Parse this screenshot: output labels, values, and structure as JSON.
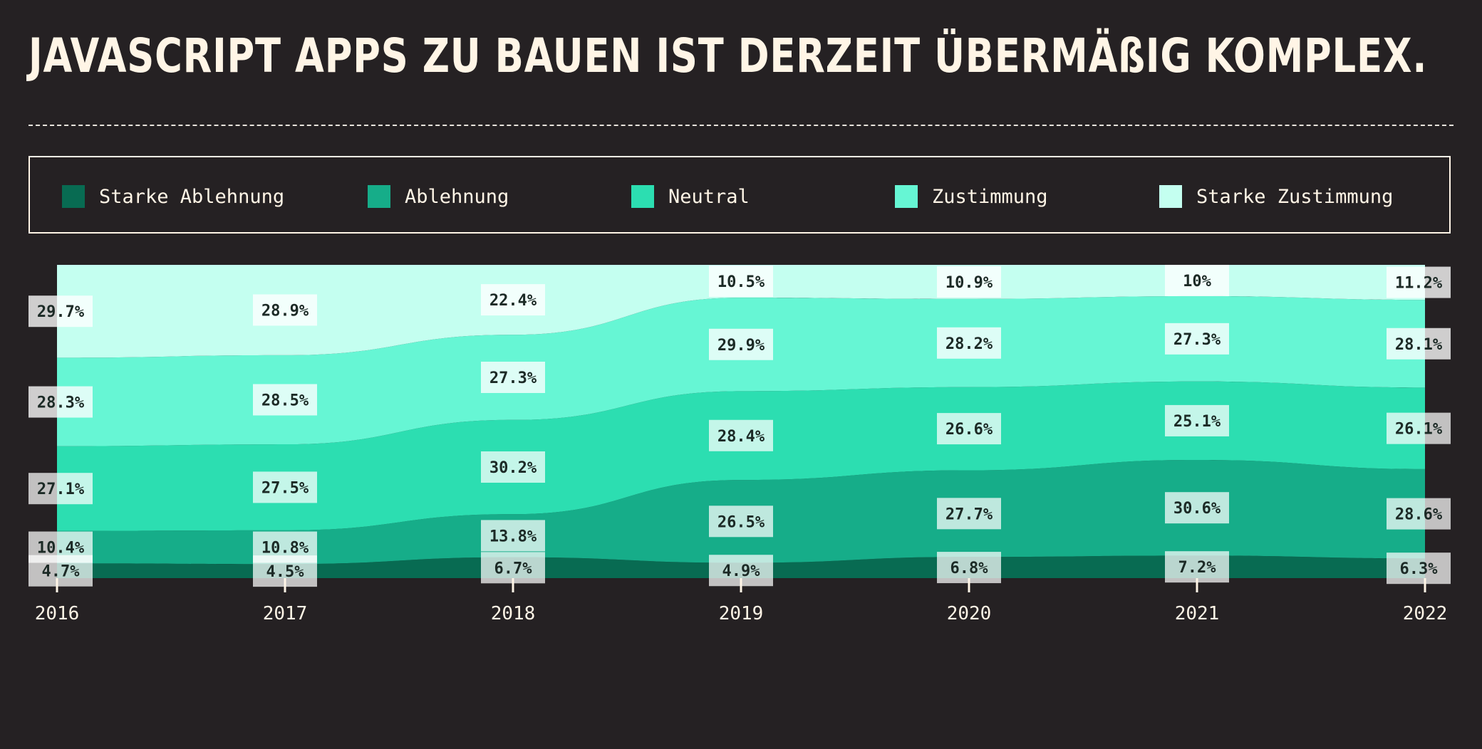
{
  "title": "JAVASCRIPT APPS ZU BAUEN IST DERZEIT ÜBERMÄßIG KOMPLEX.",
  "legend": [
    {
      "label": "Starke Ablehnung",
      "color": "#086b52"
    },
    {
      "label": "Ablehnung",
      "color": "#16ad89"
    },
    {
      "label": "Neutral",
      "color": "#2cdeb1"
    },
    {
      "label": "Zustimmung",
      "color": "#66f6d4"
    },
    {
      "label": "Starke Zustimmung",
      "color": "#c4fff0"
    }
  ],
  "chart_data": {
    "type": "area",
    "stacked": true,
    "normalized": true,
    "title": "JAVASCRIPT APPS ZU BAUEN IST DERZEIT ÜBERMÄßIG KOMPLEX.",
    "x": [
      "2016",
      "2017",
      "2018",
      "2019",
      "2020",
      "2021",
      "2022"
    ],
    "series": [
      {
        "name": "Starke Ablehnung",
        "color": "#086b52",
        "values": [
          4.7,
          4.5,
          6.7,
          4.9,
          6.8,
          7.2,
          6.3
        ]
      },
      {
        "name": "Ablehnung",
        "color": "#16ad89",
        "values": [
          10.4,
          10.8,
          13.8,
          26.5,
          27.7,
          30.6,
          28.6
        ]
      },
      {
        "name": "Neutral",
        "color": "#2cdeb1",
        "values": [
          27.1,
          27.5,
          30.2,
          28.4,
          26.6,
          25.1,
          26.1
        ]
      },
      {
        "name": "Zustimmung",
        "color": "#66f6d4",
        "values": [
          28.3,
          28.5,
          27.3,
          29.9,
          28.2,
          27.3,
          28.1
        ]
      },
      {
        "name": "Starke Zustimmung",
        "color": "#c4fff0",
        "values": [
          29.7,
          28.9,
          22.4,
          10.5,
          10.9,
          10,
          11.2
        ]
      }
    ],
    "value_labels": [
      [
        "4.7%",
        "4.5%",
        "6.7%",
        "4.9%",
        "6.8%",
        "7.2%",
        "6.3%"
      ],
      [
        "10.4%",
        "10.8%",
        "13.8%",
        "26.5%",
        "27.7%",
        "30.6%",
        "28.6%"
      ],
      [
        "27.1%",
        "27.5%",
        "30.2%",
        "28.4%",
        "26.6%",
        "25.1%",
        "26.1%"
      ],
      [
        "28.3%",
        "28.5%",
        "27.3%",
        "29.9%",
        "28.2%",
        "27.3%",
        "28.1%"
      ],
      [
        "29.7%",
        "28.9%",
        "22.4%",
        "10.5%",
        "10.9%",
        "10%",
        "11.2%"
      ]
    ],
    "legend_position": "top",
    "grid": false
  }
}
